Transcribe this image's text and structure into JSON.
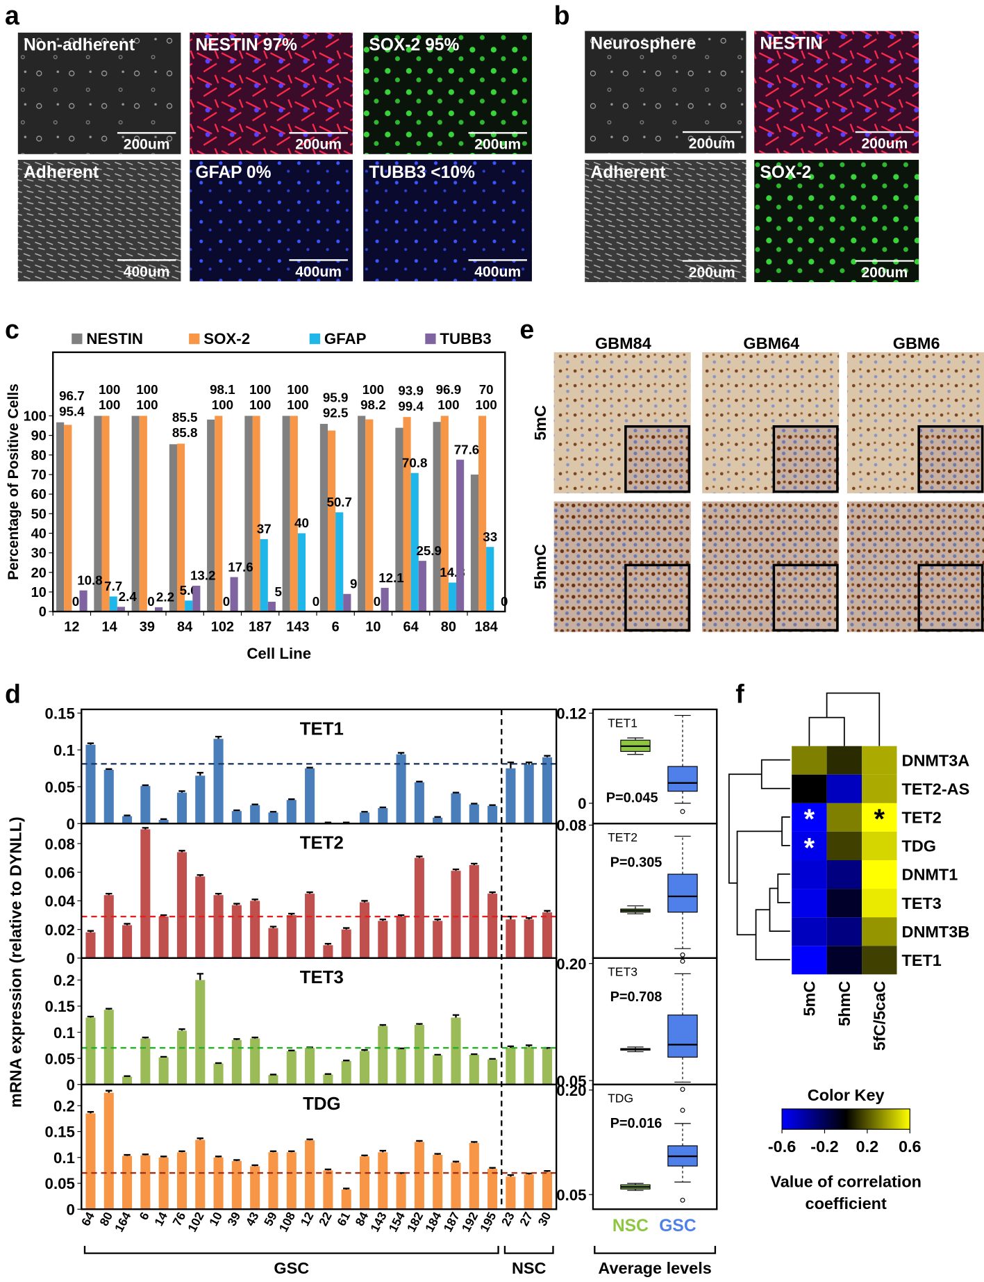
{
  "panel_labels": [
    "a",
    "b",
    "c",
    "d",
    "e",
    "f"
  ],
  "micrographs": [
    {
      "label": "Non-adherent",
      "scale_bar": "200um"
    },
    {
      "label": "NESTIN 97%",
      "scale_bar": "200um"
    },
    {
      "label": "SOX-2 95%",
      "scale_bar": "200um"
    },
    {
      "label": "Adherent",
      "scale_bar": "400um"
    },
    {
      "label": "GFAP 0%",
      "scale_bar": "400um"
    },
    {
      "label": "TUBB3 <10%",
      "scale_bar": "400um"
    },
    {
      "label": "Neurosphere",
      "scale_bar": "200um"
    },
    {
      "label": "NESTIN",
      "scale_bar": "200um"
    },
    {
      "label": "Adherent",
      "scale_bar": "200um"
    },
    {
      "label": "SOX-2",
      "scale_bar": "200um"
    }
  ],
  "ihc": {
    "columns": [
      "GBM84",
      "GBM64",
      "GBM6"
    ],
    "rows": [
      "5mC",
      "5hmC"
    ]
  },
  "panel_d": {
    "ylabel": "mRNA expression (relative to DYNLL)",
    "groups": [
      {
        "label": "GSC",
        "categories": [
          "64",
          "80",
          "164",
          "6",
          "14",
          "76",
          "102",
          "10",
          "39",
          "43",
          "59",
          "108",
          "12",
          "22",
          "61",
          "84",
          "143",
          "154",
          "182",
          "184",
          "187",
          "192",
          "195"
        ]
      },
      {
        "label": "NSC",
        "categories": [
          "23",
          "27",
          "30"
        ]
      }
    ],
    "box_groups": [
      {
        "label": "NSC",
        "color": "#8dc63f"
      },
      {
        "label": "GSC",
        "color": "#4f7fe8"
      }
    ],
    "box_xlabel": "Average levels"
  },
  "chart_data": [
    {
      "type": "grouped_bar",
      "ylabel": "Percentage of Positive Cells",
      "xlabel": "Cell Line",
      "categories": [
        "12",
        "14",
        "39",
        "84",
        "102",
        "187",
        "143",
        "6",
        "10",
        "64",
        "80",
        "184"
      ],
      "series": [
        {
          "name": "NESTIN",
          "color": "#808080",
          "values": [
            96.7,
            100,
            100,
            85.5,
            98.1,
            100,
            100,
            95.9,
            100,
            93.9,
            96.9,
            70
          ]
        },
        {
          "name": "SOX-2",
          "color": "#f79646",
          "values": [
            95.4,
            100,
            100,
            85.8,
            100,
            100,
            100,
            92.5,
            98.2,
            99.4,
            100,
            100
          ]
        },
        {
          "name": "GFAP",
          "color": "#1fb6ea",
          "values": [
            0,
            7.7,
            0,
            5.6,
            0,
            37,
            40,
            50.7,
            0,
            70.8,
            14.8,
            33
          ]
        },
        {
          "name": "TUBB3",
          "color": "#8064a2",
          "values": [
            10.8,
            2.4,
            2.2,
            13.2,
            17.6,
            5,
            0,
            9,
            12.1,
            25.9,
            77.6,
            0
          ]
        }
      ],
      "ylim": [
        0,
        132.5
      ],
      "yticks": [
        0,
        10,
        20,
        30,
        40,
        50,
        60,
        70,
        80,
        90,
        100
      ]
    },
    {
      "type": "bar",
      "title": "TET1",
      "color": "#4a7ebb",
      "reference_line": 0.081,
      "reference_color": "#1f3864",
      "values": [
        0.107,
        0.073,
        0.01,
        0.051,
        0.005,
        0.042,
        0.065,
        0.115,
        0.017,
        0.025,
        0.015,
        0.032,
        0.075,
        0.001,
        0.001,
        0.015,
        0.021,
        0.094,
        0.056,
        0.008,
        0.041,
        0.026,
        0.024,
        0.075,
        0.08,
        0.09
      ],
      "errors": [
        0.002,
        0.001,
        0.001,
        0.001,
        0.001,
        0.002,
        0.004,
        0.003,
        0.001,
        0.001,
        0.001,
        0.001,
        0.001,
        0.0005,
        0.0005,
        0.001,
        0.001,
        0.002,
        0.001,
        0.001,
        0.001,
        0.001,
        0.001,
        0.008,
        0.003,
        0.002
      ],
      "ylim": [
        0,
        0.155
      ],
      "yticks": [
        0,
        0.05,
        0.1,
        0.15
      ]
    },
    {
      "type": "bar",
      "title": "TET2",
      "color": "#c0504d",
      "reference_line": 0.029,
      "reference_color": "#e02020",
      "values": [
        0.018,
        0.044,
        0.023,
        0.09,
        0.029,
        0.074,
        0.057,
        0.044,
        0.037,
        0.04,
        0.021,
        0.03,
        0.045,
        0.009,
        0.02,
        0.039,
        0.026,
        0.029,
        0.07,
        0.026,
        0.061,
        0.065,
        0.045,
        0.027,
        0.027,
        0.032
      ],
      "errors": [
        0.001,
        0.001,
        0.001,
        0.001,
        0.001,
        0.001,
        0.001,
        0.001,
        0.001,
        0.001,
        0.001,
        0.001,
        0.001,
        0.001,
        0.001,
        0.001,
        0.001,
        0.001,
        0.001,
        0.001,
        0.001,
        0.001,
        0.001,
        0.002,
        0.001,
        0.001
      ],
      "ylim": [
        0,
        0.094
      ],
      "yticks": [
        0,
        0.02,
        0.04,
        0.06,
        0.08
      ]
    },
    {
      "type": "bar",
      "title": "TET3",
      "color": "#9bbb59",
      "reference_line": 0.07,
      "reference_color": "#22b022",
      "values": [
        0.128,
        0.143,
        0.015,
        0.088,
        0.052,
        0.103,
        0.2,
        0.04,
        0.085,
        0.088,
        0.018,
        0.064,
        0.07,
        0.019,
        0.045,
        0.064,
        0.112,
        0.068,
        0.114,
        0.056,
        0.128,
        0.057,
        0.048,
        0.07,
        0.072,
        0.068
      ],
      "errors": [
        0.002,
        0.002,
        0.001,
        0.002,
        0.001,
        0.003,
        0.012,
        0.001,
        0.002,
        0.002,
        0.001,
        0.001,
        0.001,
        0.001,
        0.001,
        0.002,
        0.002,
        0.001,
        0.002,
        0.001,
        0.005,
        0.001,
        0.001,
        0.003,
        0.003,
        0.002
      ],
      "ylim": [
        0,
        0.242
      ],
      "yticks": [
        0,
        0.05,
        0.1,
        0.15,
        0.2
      ]
    },
    {
      "type": "bar",
      "title": "TDG",
      "color": "#f79646",
      "reference_line": 0.07,
      "reference_color": "#a0301a",
      "values": [
        0.185,
        0.225,
        0.103,
        0.104,
        0.1,
        0.11,
        0.134,
        0.1,
        0.093,
        0.083,
        0.11,
        0.11,
        0.133,
        0.075,
        0.038,
        0.102,
        0.11,
        0.068,
        0.13,
        0.105,
        0.09,
        0.128,
        0.078,
        0.063,
        0.067,
        0.072
      ],
      "errors": [
        0.003,
        0.004,
        0.002,
        0.002,
        0.002,
        0.002,
        0.003,
        0.002,
        0.002,
        0.002,
        0.002,
        0.002,
        0.002,
        0.002,
        0.002,
        0.002,
        0.003,
        0.002,
        0.002,
        0.002,
        0.002,
        0.002,
        0.002,
        0.003,
        0.002,
        0.002
      ],
      "ylim": [
        0,
        0.241
      ],
      "yticks": [
        0,
        0.05,
        0.1,
        0.15,
        0.2
      ]
    },
    {
      "type": "box",
      "title": "TET1",
      "annotation": "P=0.045",
      "boxes": [
        {
          "whislo": 0.065,
          "q1": 0.069,
          "med": 0.076,
          "q3": 0.084,
          "whishi": 0.087,
          "fliers": []
        },
        {
          "whislo": 0.0,
          "q1": 0.016,
          "med": 0.027,
          "q3": 0.049,
          "whishi": 0.117,
          "fliers": [
            -0.011
          ]
        }
      ],
      "ylim": [
        -0.027,
        0.125
      ],
      "yticks": [
        0,
        0.12
      ]
    },
    {
      "type": "box",
      "title": "TET2",
      "annotation": "P=0.305",
      "boxes": [
        {
          "whislo": 0.024,
          "q1": 0.025,
          "med": 0.026,
          "q3": 0.027,
          "whishi": 0.029,
          "fliers": []
        },
        {
          "whislo": 0.002,
          "q1": 0.025,
          "med": 0.035,
          "q3": 0.049,
          "whishi": 0.073,
          "fliers": [
            -0.002
          ]
        }
      ],
      "ylim": [
        -0.004,
        0.081
      ],
      "yticks": [
        0.08
      ]
    },
    {
      "type": "box",
      "title": "TET3",
      "annotation": "P=0.708",
      "boxes": [
        {
          "whislo": 0.087,
          "q1": 0.089,
          "med": 0.09,
          "q3": 0.091,
          "whishi": 0.093,
          "fliers": []
        },
        {
          "whislo": 0.048,
          "q1": 0.08,
          "med": 0.096,
          "q3": 0.134,
          "whishi": 0.187,
          "fliers": [
            0.203
          ]
        }
      ],
      "ylim": [
        0.045,
        0.207
      ],
      "yticks": [
        {
          "value": 0.2,
          "label": "0.20"
        },
        0.05
      ]
    },
    {
      "type": "box",
      "title": "TDG",
      "annotation": "P=0.016",
      "boxes": [
        {
          "whislo": 0.056,
          "q1": 0.058,
          "med": 0.061,
          "q3": 0.064,
          "whishi": 0.066,
          "fliers": []
        },
        {
          "whislo": 0.068,
          "q1": 0.091,
          "med": 0.105,
          "q3": 0.12,
          "whishi": 0.152,
          "fliers": [
            0.201,
            0.171,
            0.042
          ]
        }
      ],
      "ylim": [
        0.029,
        0.208
      ],
      "yticks": [
        {
          "value": 0.2,
          "label": "0.20"
        },
        0.05
      ]
    },
    {
      "type": "heatmap",
      "rows": [
        "DNMT3A",
        "TET2-AS",
        "TET2",
        "TDG",
        "DNMT1",
        "TET3",
        "DNMT3B",
        "TET1"
      ],
      "columns": [
        "5mC",
        "5hmC",
        "5fC/5caC"
      ],
      "values": [
        [
          0.3,
          0.1,
          0.4
        ],
        [
          0.0,
          -0.45,
          0.4
        ],
        [
          -0.6,
          0.3,
          0.6
        ],
        [
          -0.55,
          0.15,
          0.5
        ],
        [
          -0.5,
          -0.3,
          0.6
        ],
        [
          -0.55,
          -0.1,
          0.55
        ],
        [
          -0.45,
          -0.3,
          0.35
        ],
        [
          -0.6,
          -0.1,
          0.15
        ]
      ],
      "stars": [
        [
          null,
          null,
          null
        ],
        [
          null,
          null,
          null
        ],
        [
          "*",
          null,
          "*"
        ],
        [
          "*",
          null,
          null
        ],
        [
          null,
          null,
          null
        ],
        [
          null,
          null,
          null
        ],
        [
          null,
          null,
          null
        ],
        [
          null,
          null,
          null
        ]
      ],
      "colorscale": [
        "#0000ff",
        "#000000",
        "#ffff00"
      ],
      "zlim": [
        -0.6,
        0.6
      ],
      "zticks": [
        -0.6,
        -0.2,
        0.2,
        0.6
      ],
      "color_key_title": "Color Key",
      "color_key_label": [
        "Value of correlation",
        "coefficient"
      ]
    }
  ]
}
